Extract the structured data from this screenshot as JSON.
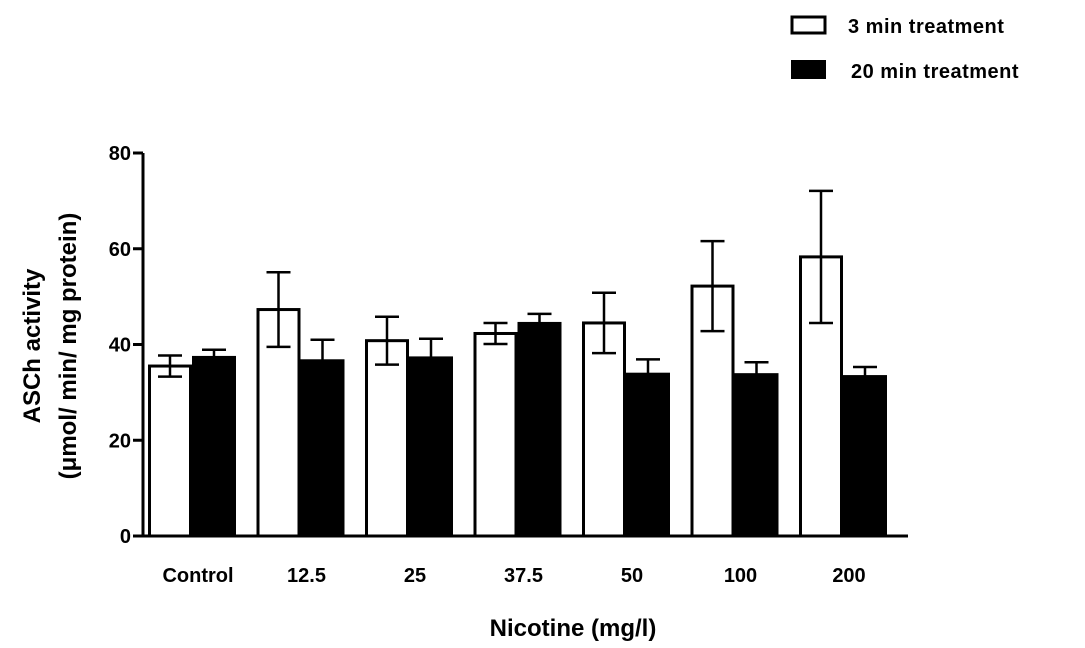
{
  "chart_data": {
    "type": "bar",
    "title": "",
    "xlabel": "Nicotine (mg/l)",
    "ylabel_line1": "ASCh activity",
    "ylabel_line2": "(μmol/ min/ mg protein)",
    "categories": [
      "Control",
      "12.5",
      "25",
      "37.5",
      "50",
      "100",
      "200"
    ],
    "ylim": [
      0,
      80
    ],
    "yticks": [
      0,
      20,
      40,
      60,
      80
    ],
    "grid": false,
    "legend_position": "top-right",
    "series": [
      {
        "name": "3 min treatment",
        "fill": "#ffffff",
        "values": [
          35.5,
          47.3,
          40.8,
          42.3,
          44.5,
          52.2,
          58.3
        ],
        "errors": [
          2.2,
          7.8,
          5.0,
          2.2,
          6.3,
          9.4,
          13.8
        ]
      },
      {
        "name": "20 min treatment",
        "fill": "#000000",
        "values": [
          37.3,
          36.6,
          37.2,
          44.4,
          33.8,
          33.7,
          33.3
        ],
        "errors": [
          1.6,
          4.4,
          4.0,
          2.0,
          3.1,
          2.6,
          2.0
        ]
      }
    ]
  }
}
